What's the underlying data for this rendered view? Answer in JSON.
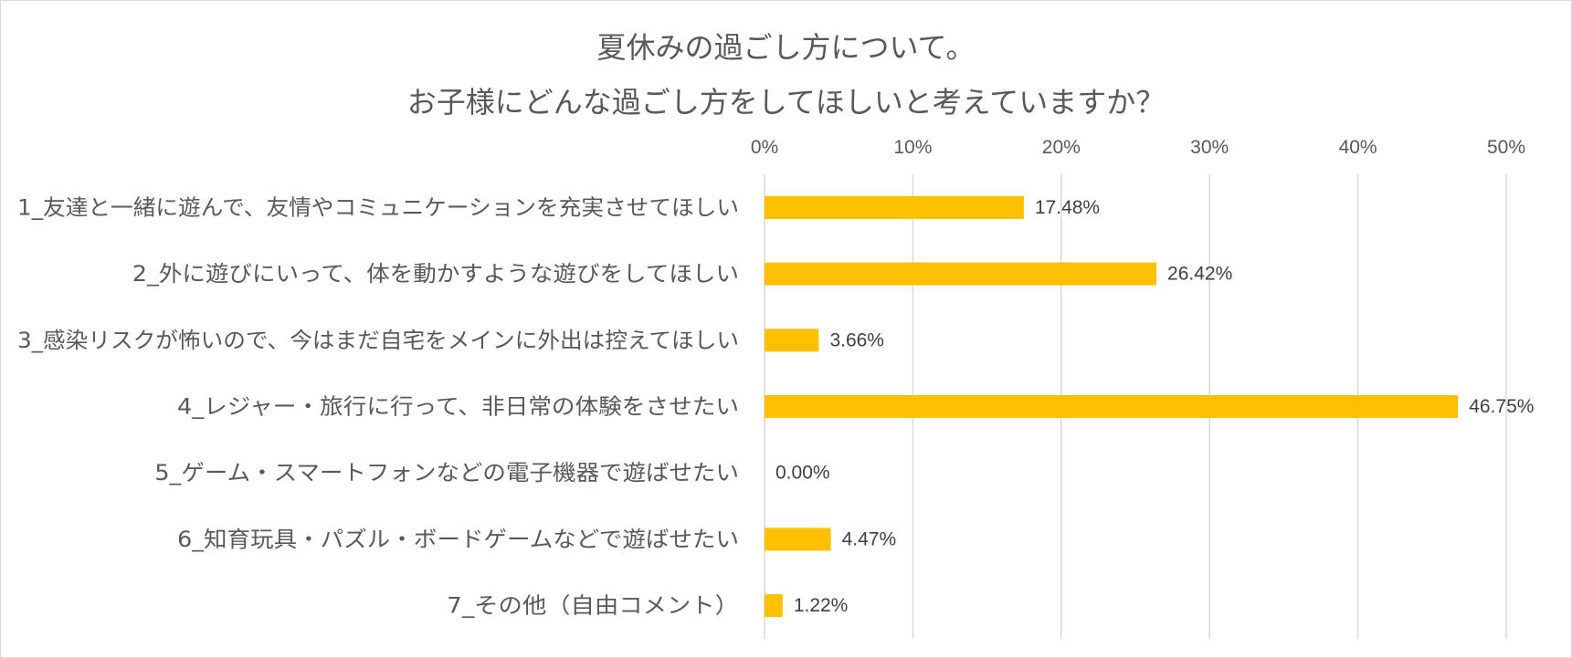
{
  "chart_data": {
    "type": "bar",
    "orientation": "horizontal",
    "title": [
      "夏休みの過ごし方について。",
      "お子様にどんな過ごし方をしてほしいと考えていますか？"
    ],
    "categories": [
      "1_友達と一緒に遊んで、友情やコミュニケーションを充実させてほしい",
      "2_外に遊びにいって、体を動かすような遊びをしてほしい",
      "3_感染リスクが怖いので、今はまだ自宅をメインに外出は控えてほしい",
      "4_レジャー・旅行に行って、非日常の体験をさせたい",
      "5_ゲーム・スマートフォンなどの電子機器で遊ばせたい",
      "6_知育玩具・パズル・ボードゲームなどで遊ばせたい",
      "7_その他（自由コメント）"
    ],
    "values": [
      17.48,
      26.42,
      3.66,
      46.75,
      0.0,
      4.47,
      1.22
    ],
    "data_labels": [
      "17.48%",
      "26.42%",
      "3.66%",
      "46.75%",
      "0.00%",
      "4.47%",
      "1.22%"
    ],
    "x_ticks": [
      "0%",
      "10%",
      "20%",
      "30%",
      "40%",
      "50%"
    ],
    "xlim": [
      0,
      50
    ],
    "x_axis_position": "top",
    "grid": true,
    "legend": "none",
    "bar_color": "#FFC000",
    "grid_color": "#D9D9D9"
  }
}
